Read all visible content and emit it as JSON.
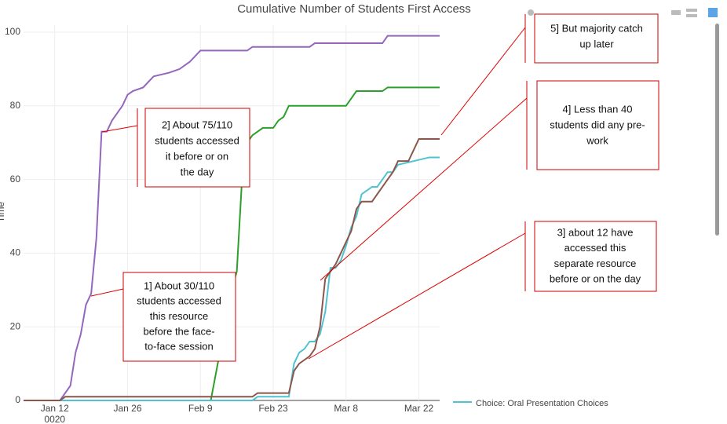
{
  "chart_data": {
    "type": "line",
    "title": "Cumulative Number of Students First Access",
    "ylabel": "Time",
    "ylim": [
      0,
      102
    ],
    "yticks": [
      0,
      20,
      40,
      60,
      80,
      100
    ],
    "xlim": [
      "2020-01-06",
      "2020-03-26"
    ],
    "xticks": [
      {
        "value": "2020-01-12",
        "label": "Jan 12"
      },
      {
        "value": "2020-01-26",
        "label": "Jan 26"
      },
      {
        "value": "2020-02-09",
        "label": "Feb 9"
      },
      {
        "value": "2020-02-23",
        "label": "Feb 23"
      },
      {
        "value": "2020-03-08",
        "label": "Mar 8"
      },
      {
        "value": "2020-03-22",
        "label": "Mar 22"
      }
    ],
    "xtick_sublabel": "0020",
    "grid": true,
    "series": [
      {
        "color": "#9467bd",
        "x": [
          "2020-01-06",
          "2020-01-13",
          "2020-01-15",
          "2020-01-16",
          "2020-01-17",
          "2020-01-18",
          "2020-01-19",
          "2020-01-20",
          "2020-01-21",
          "2020-01-22",
          "2020-01-23",
          "2020-01-24",
          "2020-01-25",
          "2020-01-26",
          "2020-01-27",
          "2020-01-29",
          "2020-01-31",
          "2020-02-03",
          "2020-02-05",
          "2020-02-07",
          "2020-02-09",
          "2020-02-18",
          "2020-02-19",
          "2020-03-01",
          "2020-03-02",
          "2020-03-15",
          "2020-03-16",
          "2020-03-26"
        ],
        "values": [
          0,
          0,
          4,
          13,
          18,
          26,
          29,
          44,
          73,
          73,
          76,
          78,
          80,
          83,
          84,
          85,
          88,
          89,
          90,
          92,
          95,
          95,
          96,
          96,
          97,
          97,
          99,
          99
        ]
      },
      {
        "color": "#2ca02c",
        "x": [
          "2020-01-06",
          "2020-02-11",
          "2020-02-13",
          "2020-02-15",
          "2020-02-16",
          "2020-02-17",
          "2020-02-18",
          "2020-02-19",
          "2020-02-21",
          "2020-02-23",
          "2020-02-24",
          "2020-02-25",
          "2020-02-26",
          "2020-03-08",
          "2020-03-10",
          "2020-03-15",
          "2020-03-16",
          "2020-03-26"
        ],
        "values": [
          0,
          0,
          15,
          30,
          35,
          60,
          70,
          72,
          74,
          74,
          76,
          77,
          80,
          80,
          84,
          84,
          85,
          85
        ]
      },
      {
        "name": "Choice: Oral Presentation Choices",
        "color": "#4fc3d0",
        "x": [
          "2020-01-06",
          "2020-02-19",
          "2020-02-20",
          "2020-02-26",
          "2020-02-27",
          "2020-02-28",
          "2020-02-29",
          "2020-03-01",
          "2020-03-02",
          "2020-03-03",
          "2020-03-04",
          "2020-03-05",
          "2020-03-06",
          "2020-03-07",
          "2020-03-08",
          "2020-03-09",
          "2020-03-10",
          "2020-03-11",
          "2020-03-13",
          "2020-03-14",
          "2020-03-15",
          "2020-03-16",
          "2020-03-17",
          "2020-03-18",
          "2020-03-24",
          "2020-03-26"
        ],
        "values": [
          0,
          0,
          1,
          1,
          10,
          13,
          14,
          16,
          16,
          18,
          24,
          36,
          36,
          38,
          42,
          47,
          50,
          56,
          58,
          58,
          60,
          62,
          62,
          64,
          66,
          66
        ]
      },
      {
        "color": "#8c564b",
        "x": [
          "2020-01-06",
          "2020-01-13",
          "2020-01-14",
          "2020-02-19",
          "2020-02-20",
          "2020-02-26",
          "2020-02-27",
          "2020-02-28",
          "2020-03-01",
          "2020-03-02",
          "2020-03-03",
          "2020-03-04",
          "2020-03-05",
          "2020-03-06",
          "2020-03-07",
          "2020-03-08",
          "2020-03-09",
          "2020-03-10",
          "2020-03-11",
          "2020-03-13",
          "2020-03-14",
          "2020-03-15",
          "2020-03-16",
          "2020-03-17",
          "2020-03-18",
          "2020-03-20",
          "2020-03-21",
          "2020-03-22",
          "2020-03-26"
        ],
        "values": [
          0,
          0,
          1,
          1,
          2,
          2,
          8,
          10,
          12,
          14,
          20,
          33,
          35,
          37,
          40,
          43,
          46,
          52,
          54,
          54,
          56,
          58,
          60,
          62,
          65,
          65,
          68,
          71,
          71
        ]
      }
    ],
    "annotations": [
      {
        "lines": [
          "1] About 30/110",
          "students accessed",
          "this resource",
          "before the face-",
          "to-face session"
        ]
      },
      {
        "lines": [
          "2] About 75/110",
          "students accessed",
          "it before or on",
          "the day"
        ]
      },
      {
        "lines": [
          "3] about 12 have",
          "accessed this",
          "separate resource",
          "before or on the day"
        ]
      },
      {
        "lines": [
          "4] Less than 40",
          "students  did any pre-",
          "work"
        ]
      },
      {
        "lines": [
          "5] But majority catch",
          "up later"
        ]
      }
    ]
  }
}
